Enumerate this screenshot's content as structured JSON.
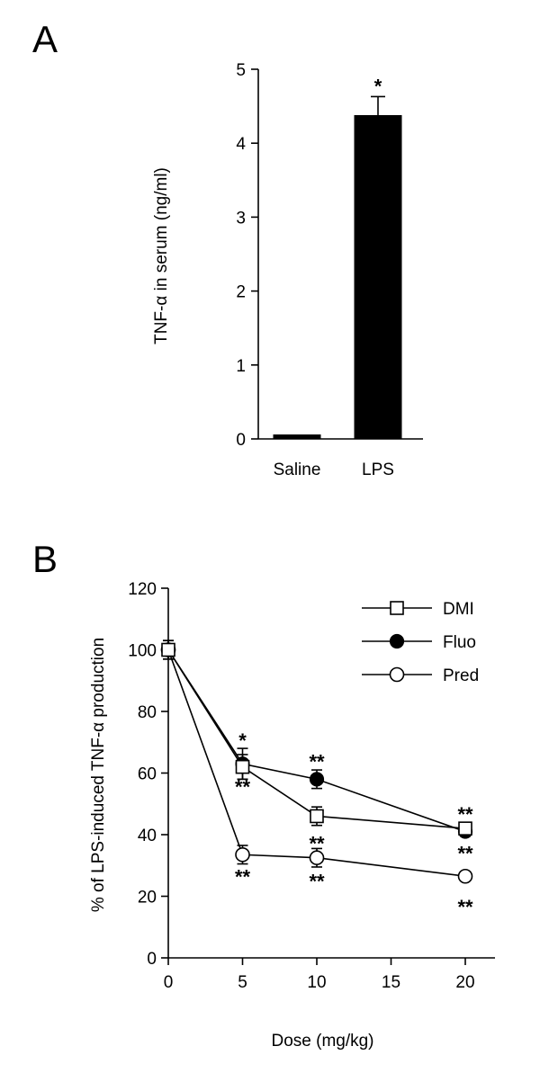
{
  "chart_data": [
    {
      "panel": "A",
      "type": "bar",
      "categories": [
        "Saline",
        "LPS"
      ],
      "values": [
        0.06,
        4.38
      ],
      "errors": [
        0.0,
        0.25
      ],
      "significance": [
        "",
        "*"
      ],
      "ylabel": "TNF-α in serum (ng/ml)",
      "xlabel": "",
      "ylim": [
        0,
        5
      ],
      "yticks": [
        "0",
        "1",
        "2",
        "3",
        "4",
        "5"
      ],
      "bar_color": "#000000",
      "grid": false
    },
    {
      "panel": "B",
      "type": "line",
      "xlabel": "Dose (mg/kg)",
      "ylabel": "% of LPS-induced TNF-α production",
      "xlim": [
        0,
        22
      ],
      "ylim": [
        0,
        120
      ],
      "xticks": [
        "0",
        "5",
        "10",
        "15",
        "20"
      ],
      "yticks": [
        "0",
        "20",
        "40",
        "60",
        "80",
        "100",
        "120"
      ],
      "legend_position": "top-right",
      "grid": false,
      "series": [
        {
          "name": "DMI",
          "marker": "open-square",
          "x": [
            0,
            5,
            10,
            20
          ],
          "y": [
            100,
            62,
            46,
            42
          ],
          "errors": [
            3,
            4,
            3,
            1.5
          ],
          "significance": [
            "",
            "**",
            "**",
            "**"
          ]
        },
        {
          "name": "Fluo",
          "marker": "filled-circle",
          "x": [
            0,
            5,
            10,
            20
          ],
          "y": [
            100,
            63,
            58,
            41
          ],
          "errors": [
            3,
            5,
            3,
            1.5
          ],
          "significance": [
            "",
            "*",
            "**",
            "**"
          ]
        },
        {
          "name": "Pred",
          "marker": "open-circle",
          "x": [
            0,
            5,
            10,
            20
          ],
          "y": [
            100,
            33.5,
            32.5,
            26.5
          ],
          "errors": [
            3,
            3,
            3,
            1
          ],
          "significance": [
            "",
            "**",
            "**",
            "**"
          ]
        }
      ]
    }
  ]
}
